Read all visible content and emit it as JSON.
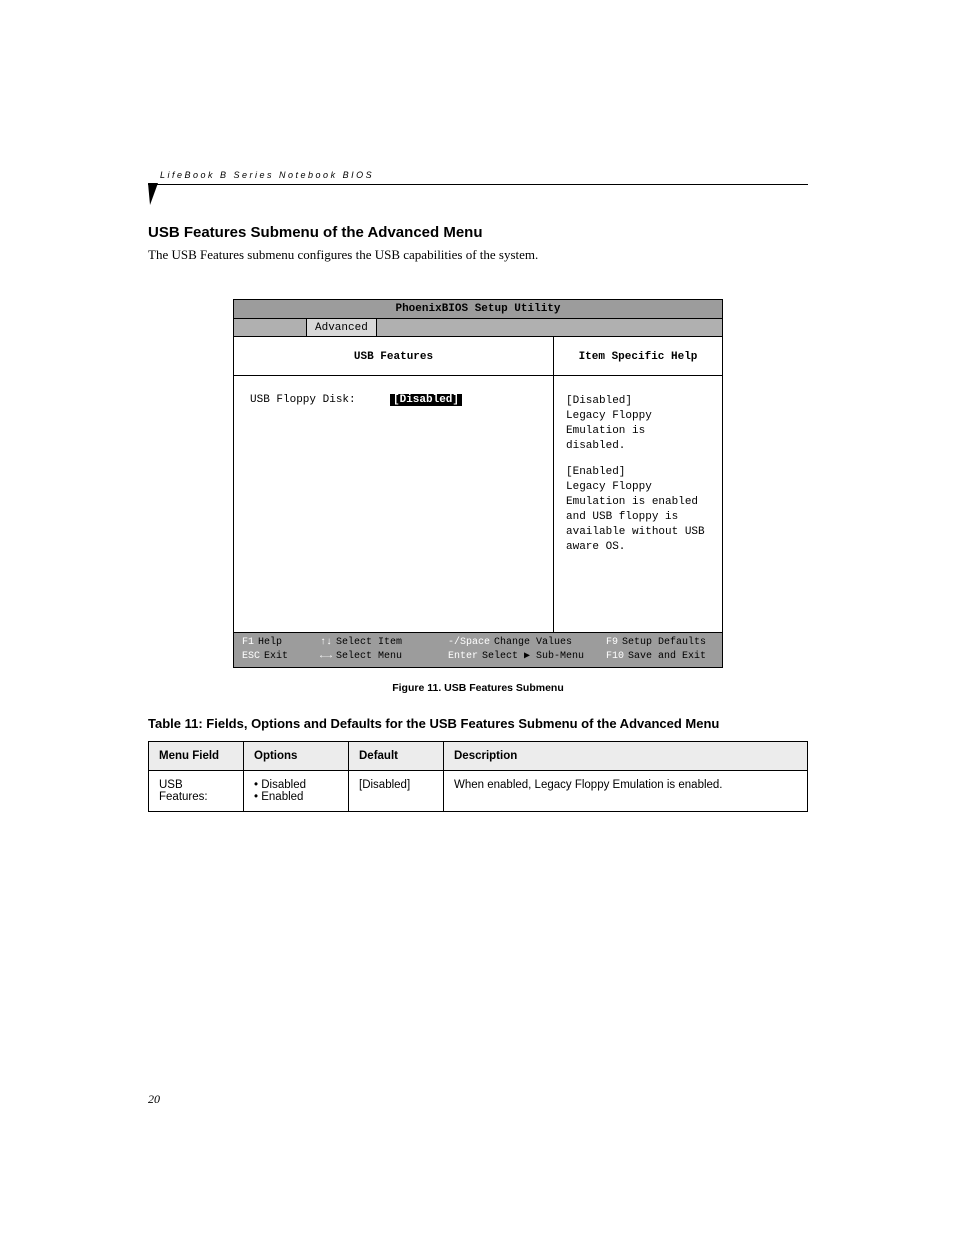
{
  "header": "LifeBook B Series Notebook BIOS",
  "section_title": "USB Features Submenu of the Advanced Menu",
  "intro": "The USB Features submenu configures the USB capabilities of the system.",
  "bios": {
    "title": "PhoenixBIOS Setup Utility",
    "tab": "Advanced",
    "left_header": "USB Features",
    "right_header": "Item Specific Help",
    "field_label": "USB Floppy Disk:",
    "field_value": "[Disabled]",
    "help_line1": "[Disabled]",
    "help_line2": "Legacy Floppy Emulation is disabled.",
    "help_line3": "[Enabled]",
    "help_line4": "Legacy Floppy Emulation is enabled and USB floppy is available without USB aware OS.",
    "footer": {
      "r1c1k": "F1",
      "r1c1v": "Help",
      "r1c2k": "↑↓",
      "r1c2v": "Select Item",
      "r1c3k": "-/Space",
      "r1c3v": "Change Values",
      "r1c4k": "F9",
      "r1c4v": "Setup Defaults",
      "r2c1k": "ESC",
      "r2c1v": "Exit",
      "r2c2k": "←→",
      "r2c2v": "Select Menu",
      "r2c3k": "Enter",
      "r2c3v": "Select ▶ Sub-Menu",
      "r2c4k": "F10",
      "r2c4v": "Save and Exit"
    }
  },
  "caption": "Figure 11.  USB Features Submenu",
  "table_title": "Table 11: Fields, Options and Defaults for the USB Features Submenu of the Advanced Menu",
  "table": {
    "h1": "Menu Field",
    "h2": "Options",
    "h3": "Default",
    "h4": "Description",
    "r1c1": "USB Features:",
    "r1c2a": "Disabled",
    "r1c2b": "Enabled",
    "r1c3": "[Disabled]",
    "r1c4": "When enabled, Legacy Floppy Emulation is enabled."
  },
  "page_number": "20"
}
